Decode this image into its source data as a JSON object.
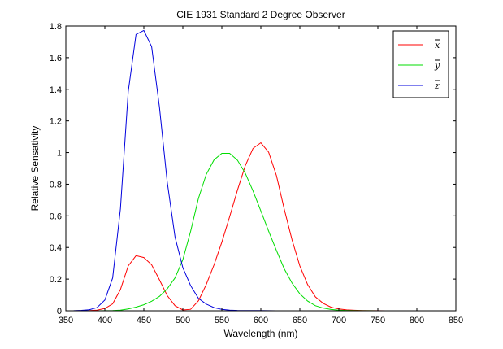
{
  "chart_data": {
    "type": "line",
    "title": "CIE 1931 Standard 2 Degree Observer",
    "xlabel": "Wavelength (nm)",
    "ylabel": "Relative Sensativity",
    "xlim": [
      350,
      850
    ],
    "ylim": [
      0,
      1.8
    ],
    "xticks": [
      350,
      400,
      450,
      500,
      550,
      600,
      650,
      700,
      750,
      800,
      850
    ],
    "yticks": [
      0,
      0.2,
      0.4,
      0.6,
      0.8,
      1,
      1.2,
      1.4,
      1.6,
      1.8
    ],
    "xtick_labels": [
      "350",
      "400",
      "450",
      "500",
      "550",
      "600",
      "650",
      "700",
      "750",
      "800",
      "850"
    ],
    "ytick_labels": [
      "0",
      "0.2",
      "0.4",
      "0.6",
      "0.8",
      "1",
      "1.2",
      "1.4",
      "1.6",
      "1.8"
    ],
    "grid": false,
    "legend_position": "top-right",
    "x": [
      360,
      370,
      380,
      390,
      400,
      410,
      420,
      430,
      440,
      450,
      460,
      470,
      480,
      490,
      500,
      510,
      520,
      530,
      540,
      550,
      560,
      570,
      580,
      590,
      600,
      610,
      620,
      630,
      640,
      650,
      660,
      670,
      680,
      690,
      700,
      710,
      720,
      730,
      740,
      750,
      760,
      770,
      780,
      790,
      800,
      810,
      820,
      830
    ],
    "series": [
      {
        "name": "x",
        "color": "#ff0000",
        "values": [
          0.0001,
          0.0006,
          0.0014,
          0.0042,
          0.0143,
          0.0435,
          0.1344,
          0.2839,
          0.3483,
          0.3362,
          0.2908,
          0.1954,
          0.0956,
          0.032,
          0.0049,
          0.0093,
          0.0633,
          0.1655,
          0.2904,
          0.4334,
          0.5945,
          0.7621,
          0.9163,
          1.0263,
          1.0622,
          1.0026,
          0.8544,
          0.6424,
          0.4479,
          0.2835,
          0.1649,
          0.0874,
          0.0468,
          0.0227,
          0.0114,
          0.0058,
          0.0029,
          0.0014,
          0.0007,
          0.0003,
          0.0002,
          0.0001,
          0.0,
          0.0,
          0.0,
          0.0,
          0.0,
          0.0
        ]
      },
      {
        "name": "y",
        "color": "#00dd00",
        "values": [
          0.0,
          0.0,
          0.0,
          0.0001,
          0.0004,
          0.0012,
          0.004,
          0.0116,
          0.023,
          0.038,
          0.06,
          0.091,
          0.139,
          0.208,
          0.323,
          0.503,
          0.71,
          0.862,
          0.954,
          0.995,
          0.995,
          0.952,
          0.87,
          0.757,
          0.631,
          0.503,
          0.381,
          0.265,
          0.175,
          0.107,
          0.061,
          0.032,
          0.017,
          0.0082,
          0.0041,
          0.0021,
          0.001,
          0.0005,
          0.0003,
          0.0001,
          0.0001,
          0.0,
          0.0,
          0.0,
          0.0,
          0.0,
          0.0,
          0.0
        ]
      },
      {
        "name": "z",
        "color": "#0000dd",
        "values": [
          0.0006,
          0.0026,
          0.0065,
          0.0201,
          0.0679,
          0.2074,
          0.6456,
          1.3856,
          1.7471,
          1.7721,
          1.6692,
          1.2876,
          0.813,
          0.4652,
          0.272,
          0.1582,
          0.0782,
          0.0422,
          0.0203,
          0.0087,
          0.0039,
          0.0021,
          0.0017,
          0.0011,
          0.0008,
          0.0003,
          0.0002,
          0.0,
          0.0,
          0.0,
          0.0,
          0.0,
          0.0,
          0.0,
          0.0,
          0.0,
          0.0,
          0.0,
          0.0,
          0.0,
          0.0,
          0.0,
          0.0,
          0.0,
          0.0,
          0.0,
          0.0,
          0.0
        ]
      }
    ]
  }
}
